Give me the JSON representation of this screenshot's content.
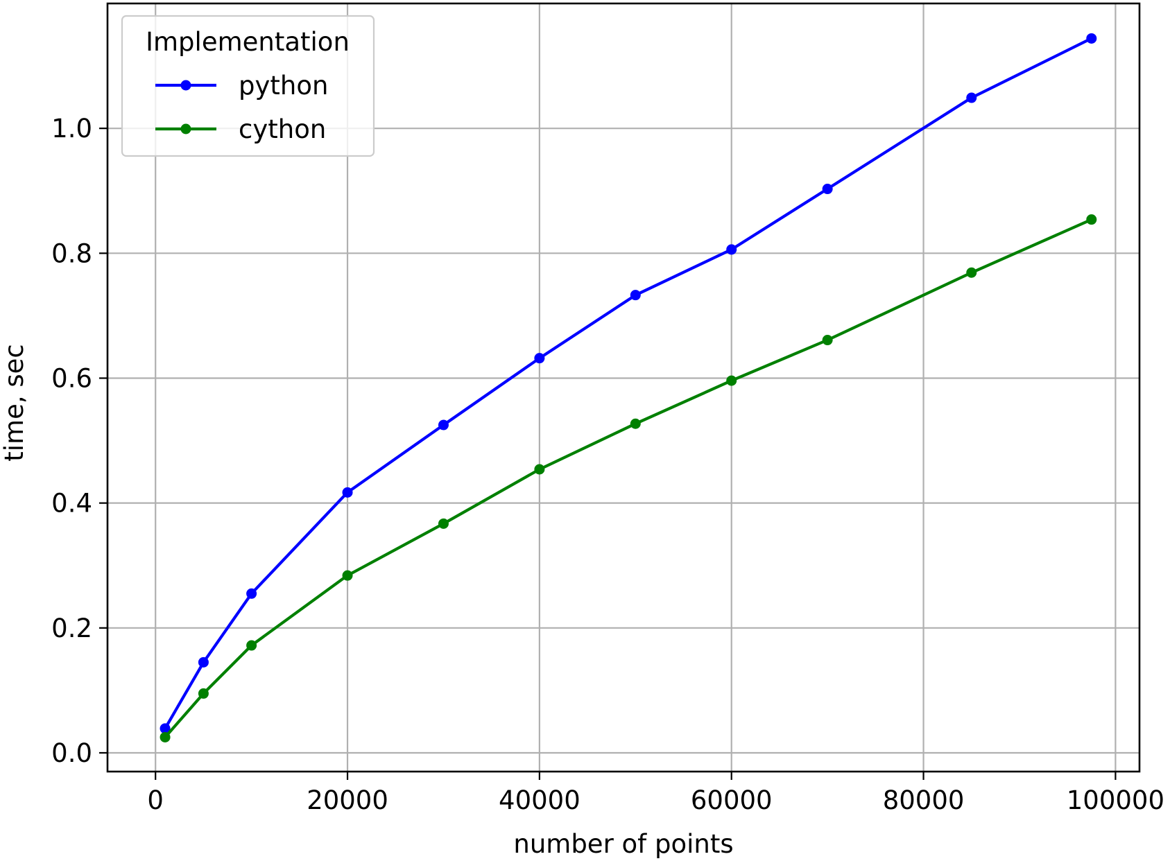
{
  "chart_data": {
    "type": "line",
    "xlabel": "number of points",
    "ylabel": "time, sec",
    "xlim": [
      -5000,
      102500
    ],
    "ylim": [
      -0.03,
      1.2
    ],
    "xticks": [
      0,
      20000,
      40000,
      60000,
      80000,
      100000
    ],
    "yticks": [
      0.0,
      0.2,
      0.4,
      0.6,
      0.8,
      1.0
    ],
    "grid": true,
    "legend": {
      "title": "Implementation",
      "placement": "top-left"
    },
    "x": [
      1000,
      5000,
      10000,
      20000,
      30000,
      40000,
      50000,
      60000,
      70000,
      85000,
      97500
    ],
    "series": [
      {
        "name": "python",
        "color": "#0000ff",
        "values": [
          0.039,
          0.145,
          0.255,
          0.417,
          0.525,
          0.632,
          0.733,
          0.806,
          0.903,
          1.049,
          1.144
        ]
      },
      {
        "name": "cython",
        "color": "#008000",
        "values": [
          0.025,
          0.095,
          0.172,
          0.284,
          0.367,
          0.454,
          0.527,
          0.596,
          0.661,
          0.769,
          0.854
        ]
      }
    ]
  }
}
